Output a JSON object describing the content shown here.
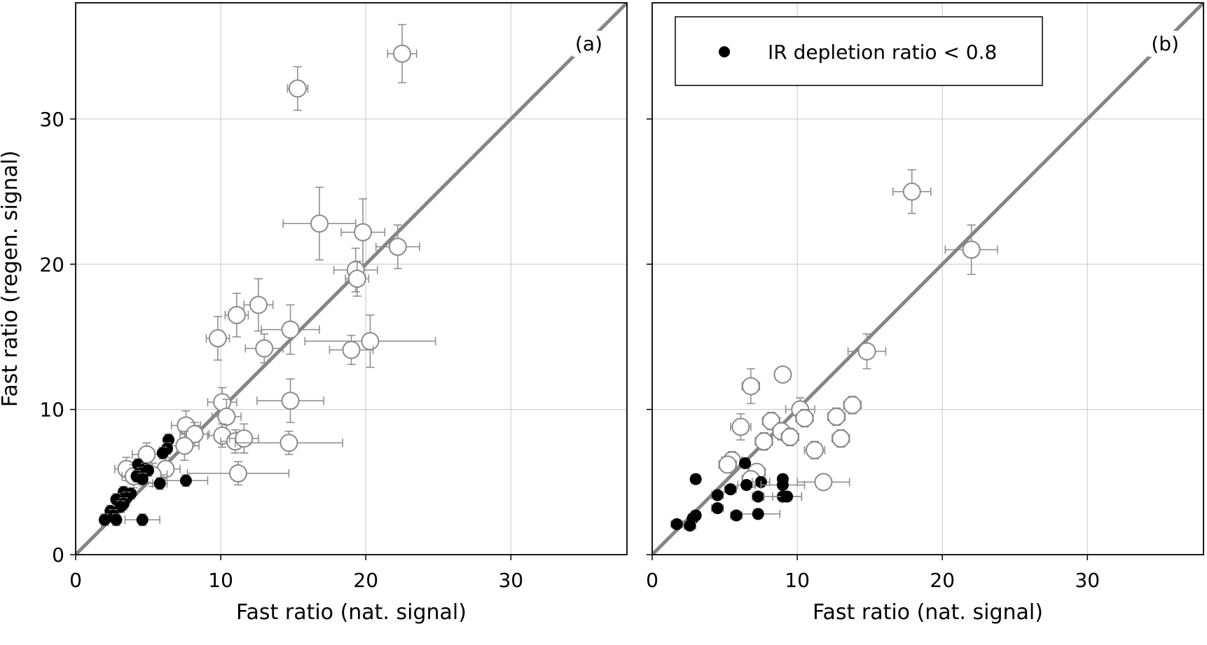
{
  "chart_data": [
    {
      "type": "scatter",
      "panel_label": "(a)",
      "xlabel": "Fast ratio (nat. signal)",
      "ylabel": "Fast ratio (regen. signal)",
      "xlim": [
        0,
        38
      ],
      "ylim": [
        0,
        38
      ],
      "xticks": [
        0,
        10,
        20,
        30
      ],
      "yticks": [
        0,
        10,
        20,
        30
      ],
      "grid": true,
      "reference_line": "y = x",
      "series": [
        {
          "marker": "open-circle",
          "points": [
            {
              "x": 22.5,
              "y": 34.5,
              "xerr": 1.0,
              "yerr": 2.0
            },
            {
              "x": 15.3,
              "y": 32.1,
              "xerr": 0.7,
              "yerr": 1.5
            },
            {
              "x": 16.8,
              "y": 22.8,
              "xerr": 2.5,
              "yerr": 2.5
            },
            {
              "x": 19.8,
              "y": 22.2,
              "xerr": 1.5,
              "yerr": 2.3
            },
            {
              "x": 22.2,
              "y": 21.2,
              "xerr": 1.5,
              "yerr": 1.5
            },
            {
              "x": 19.3,
              "y": 19.6,
              "xerr": 1.5,
              "yerr": 1.5
            },
            {
              "x": 19.4,
              "y": 19.0,
              "xerr": 0.8,
              "yerr": 1.2
            },
            {
              "x": 12.6,
              "y": 17.2,
              "xerr": 1.0,
              "yerr": 1.8
            },
            {
              "x": 11.1,
              "y": 16.5,
              "xerr": 0.8,
              "yerr": 1.5
            },
            {
              "x": 14.8,
              "y": 15.5,
              "xerr": 2.0,
              "yerr": 1.7
            },
            {
              "x": 9.8,
              "y": 14.9,
              "xerr": 0.8,
              "yerr": 1.5
            },
            {
              "x": 13.0,
              "y": 14.2,
              "xerr": 1.3,
              "yerr": 1.0
            },
            {
              "x": 20.3,
              "y": 14.7,
              "xerr": 4.5,
              "yerr": 1.8
            },
            {
              "x": 19.0,
              "y": 14.1,
              "xerr": 1.5,
              "yerr": 1.0
            },
            {
              "x": 14.8,
              "y": 10.6,
              "xerr": 2.3,
              "yerr": 1.5
            },
            {
              "x": 10.1,
              "y": 10.5,
              "xerr": 1.0,
              "yerr": 1.0
            },
            {
              "x": 10.4,
              "y": 9.5,
              "xerr": 1.0,
              "yerr": 1.2
            },
            {
              "x": 7.6,
              "y": 8.9,
              "xerr": 1.0,
              "yerr": 1.0
            },
            {
              "x": 8.2,
              "y": 8.3,
              "xerr": 1.0,
              "yerr": 0.8
            },
            {
              "x": 10.1,
              "y": 8.2,
              "xerr": 1.0,
              "yerr": 0.8
            },
            {
              "x": 11.0,
              "y": 7.8,
              "xerr": 1.0,
              "yerr": 0.8
            },
            {
              "x": 11.6,
              "y": 8.0,
              "xerr": 1.0,
              "yerr": 1.0
            },
            {
              "x": 7.5,
              "y": 7.5,
              "xerr": 1.0,
              "yerr": 1.0
            },
            {
              "x": 14.7,
              "y": 7.7,
              "xerr": 3.7,
              "yerr": 0.8
            },
            {
              "x": 4.9,
              "y": 6.9,
              "xerr": 1.0,
              "yerr": 0.8
            },
            {
              "x": 3.5,
              "y": 5.9,
              "xerr": 0.8,
              "yerr": 0.8
            },
            {
              "x": 6.2,
              "y": 5.9,
              "xerr": 1.0,
              "yerr": 0.8
            },
            {
              "x": 4.0,
              "y": 5.4,
              "xerr": 0.8,
              "yerr": 0.8
            },
            {
              "x": 5.3,
              "y": 5.5,
              "xerr": 1.0,
              "yerr": 0.8
            },
            {
              "x": 11.2,
              "y": 5.6,
              "xerr": 3.5,
              "yerr": 0.8
            }
          ]
        },
        {
          "marker": "filled-circle",
          "points": [
            {
              "x": 6.4,
              "y": 7.9,
              "xerr": 0.3,
              "yerr": 0.4
            },
            {
              "x": 6.3,
              "y": 7.3,
              "xerr": 0.3,
              "yerr": 0.4
            },
            {
              "x": 6.0,
              "y": 7.0,
              "xerr": 0.3,
              "yerr": 0.4
            },
            {
              "x": 4.3,
              "y": 6.2,
              "xerr": 0.3,
              "yerr": 0.4
            },
            {
              "x": 4.8,
              "y": 5.9,
              "xerr": 0.3,
              "yerr": 0.4
            },
            {
              "x": 4.5,
              "y": 5.6,
              "xerr": 0.3,
              "yerr": 0.4
            },
            {
              "x": 5.0,
              "y": 5.8,
              "xerr": 0.3,
              "yerr": 0.4
            },
            {
              "x": 4.2,
              "y": 5.4,
              "xerr": 0.3,
              "yerr": 0.4
            },
            {
              "x": 4.6,
              "y": 5.2,
              "xerr": 0.3,
              "yerr": 0.4
            },
            {
              "x": 7.6,
              "y": 5.1,
              "xerr": 1.5,
              "yerr": 0.4
            },
            {
              "x": 5.8,
              "y": 4.9,
              "xerr": 0.5,
              "yerr": 0.4
            },
            {
              "x": 3.8,
              "y": 4.2,
              "xerr": 0.3,
              "yerr": 0.4
            },
            {
              "x": 3.3,
              "y": 4.3,
              "xerr": 0.3,
              "yerr": 0.4
            },
            {
              "x": 3.5,
              "y": 3.9,
              "xerr": 0.3,
              "yerr": 0.4
            },
            {
              "x": 2.8,
              "y": 3.8,
              "xerr": 0.3,
              "yerr": 0.4
            },
            {
              "x": 3.3,
              "y": 3.5,
              "xerr": 0.3,
              "yerr": 0.4
            },
            {
              "x": 3.1,
              "y": 3.3,
              "xerr": 0.3,
              "yerr": 0.4
            },
            {
              "x": 2.4,
              "y": 3.0,
              "xerr": 0.3,
              "yerr": 0.4
            },
            {
              "x": 2.6,
              "y": 2.7,
              "xerr": 0.3,
              "yerr": 0.4
            },
            {
              "x": 2.0,
              "y": 2.4,
              "xerr": 0.3,
              "yerr": 0.4
            },
            {
              "x": 2.8,
              "y": 2.4,
              "xerr": 0.3,
              "yerr": 0.4
            },
            {
              "x": 4.6,
              "y": 2.4,
              "xerr": 1.2,
              "yerr": 0.4
            }
          ]
        }
      ]
    },
    {
      "type": "scatter",
      "panel_label": "(b)",
      "xlabel": "Fast ratio (nat. signal)",
      "ylabel": "",
      "xlim": [
        0,
        38
      ],
      "ylim": [
        0,
        38
      ],
      "xticks": [
        0,
        10,
        20,
        30
      ],
      "yticks": [
        0,
        10,
        20,
        30
      ],
      "grid": true,
      "reference_line": "y = x",
      "legend": {
        "placement": "top-left",
        "entries": [
          {
            "marker": "filled-circle",
            "label": "IR depletion ratio < 0.8"
          }
        ]
      },
      "series": [
        {
          "marker": "open-circle",
          "points": [
            {
              "x": 17.9,
              "y": 25.0,
              "xerr": 1.3,
              "yerr": 1.5
            },
            {
              "x": 22.0,
              "y": 21.0,
              "xerr": 1.8,
              "yerr": 1.7
            },
            {
              "x": 14.8,
              "y": 14.0,
              "xerr": 1.3,
              "yerr": 1.2
            },
            {
              "x": 9.0,
              "y": 12.4,
              "xerr": 0.5,
              "yerr": 0.5
            },
            {
              "x": 6.8,
              "y": 11.6,
              "xerr": 0.6,
              "yerr": 1.2
            },
            {
              "x": 10.2,
              "y": 10.0,
              "xerr": 1.0,
              "yerr": 0.8
            },
            {
              "x": 13.8,
              "y": 10.3,
              "xerr": 0.6,
              "yerr": 0.6
            },
            {
              "x": 12.7,
              "y": 9.5,
              "xerr": 0.6,
              "yerr": 0.6
            },
            {
              "x": 10.5,
              "y": 9.4,
              "xerr": 0.6,
              "yerr": 0.6
            },
            {
              "x": 8.2,
              "y": 9.2,
              "xerr": 0.6,
              "yerr": 0.6
            },
            {
              "x": 6.1,
              "y": 8.8,
              "xerr": 0.7,
              "yerr": 0.9
            },
            {
              "x": 8.9,
              "y": 8.5,
              "xerr": 0.6,
              "yerr": 0.6
            },
            {
              "x": 9.5,
              "y": 8.1,
              "xerr": 0.6,
              "yerr": 0.6
            },
            {
              "x": 13.0,
              "y": 8.0,
              "xerr": 0.6,
              "yerr": 0.6
            },
            {
              "x": 7.7,
              "y": 7.8,
              "xerr": 0.6,
              "yerr": 0.6
            },
            {
              "x": 11.2,
              "y": 7.2,
              "xerr": 0.7,
              "yerr": 0.6
            },
            {
              "x": 5.5,
              "y": 6.5,
              "xerr": 0.7,
              "yerr": 0.6
            },
            {
              "x": 5.2,
              "y": 6.2,
              "xerr": 0.6,
              "yerr": 0.5
            },
            {
              "x": 7.2,
              "y": 5.7,
              "xerr": 0.6,
              "yerr": 0.5
            },
            {
              "x": 6.8,
              "y": 5.2,
              "xerr": 0.6,
              "yerr": 0.5
            },
            {
              "x": 11.8,
              "y": 5.0,
              "xerr": 1.8,
              "yerr": 0.4
            }
          ]
        },
        {
          "marker": "filled-circle",
          "points": [
            {
              "x": 6.4,
              "y": 6.3,
              "xerr": 0.3,
              "yerr": 0.3
            },
            {
              "x": 3.0,
              "y": 5.2,
              "xerr": 0.3,
              "yerr": 0.3
            },
            {
              "x": 9.0,
              "y": 5.2,
              "xerr": 0.3,
              "yerr": 0.3
            },
            {
              "x": 7.5,
              "y": 5.0,
              "xerr": 0.6,
              "yerr": 0.3
            },
            {
              "x": 6.5,
              "y": 4.8,
              "xerr": 0.6,
              "yerr": 0.3
            },
            {
              "x": 9.0,
              "y": 4.8,
              "xerr": 1.5,
              "yerr": 0.3
            },
            {
              "x": 5.4,
              "y": 4.5,
              "xerr": 0.4,
              "yerr": 0.3
            },
            {
              "x": 4.5,
              "y": 4.1,
              "xerr": 0.4,
              "yerr": 0.3
            },
            {
              "x": 7.3,
              "y": 4.0,
              "xerr": 0.4,
              "yerr": 0.3
            },
            {
              "x": 9.0,
              "y": 4.0,
              "xerr": 1.3,
              "yerr": 0.3
            },
            {
              "x": 9.3,
              "y": 4.0,
              "xerr": 1.0,
              "yerr": 0.3
            },
            {
              "x": 4.5,
              "y": 3.2,
              "xerr": 0.4,
              "yerr": 0.3
            },
            {
              "x": 7.3,
              "y": 2.8,
              "xerr": 1.5,
              "yerr": 0.3
            },
            {
              "x": 5.8,
              "y": 2.7,
              "xerr": 0.4,
              "yerr": 0.3
            },
            {
              "x": 3.0,
              "y": 2.7,
              "xerr": 0.3,
              "yerr": 0.3
            },
            {
              "x": 2.8,
              "y": 2.5,
              "xerr": 0.3,
              "yerr": 0.3
            },
            {
              "x": 1.7,
              "y": 2.1,
              "xerr": 0.4,
              "yerr": 0.3
            },
            {
              "x": 2.6,
              "y": 2.0,
              "xerr": 0.4,
              "yerr": 0.3
            }
          ]
        }
      ]
    }
  ]
}
